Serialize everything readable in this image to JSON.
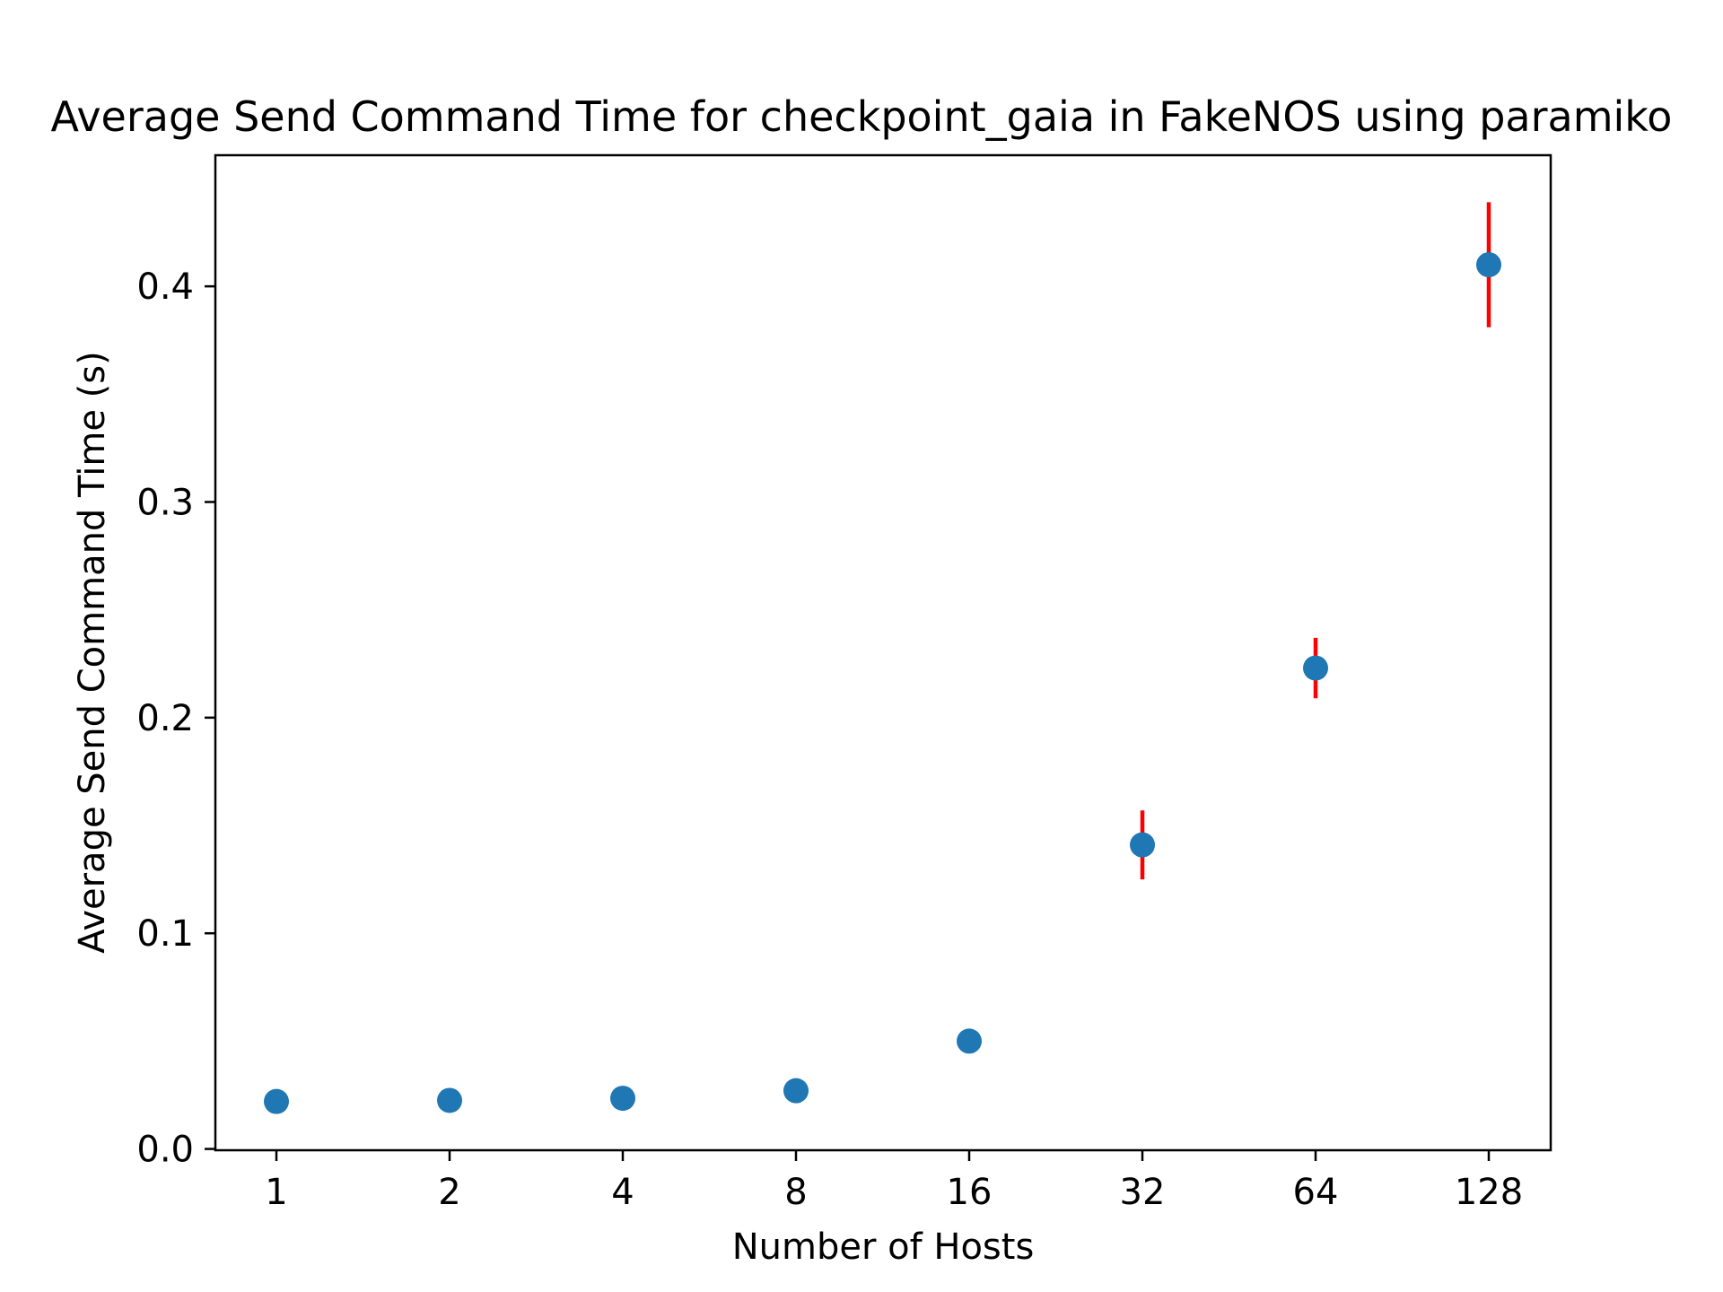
{
  "chart_data": {
    "type": "scatter",
    "title": "Average Send Command Time for checkpoint_gaia in FakeNOS using paramiko",
    "xlabel": "Number of Hosts",
    "ylabel": "Average Send Command Time (s)",
    "x_scale": "log2",
    "x": [
      1,
      2,
      4,
      8,
      16,
      32,
      64,
      128
    ],
    "x_tick_labels": [
      "1",
      "2",
      "4",
      "8",
      "16",
      "32",
      "64",
      "128"
    ],
    "y": [
      0.022,
      0.0225,
      0.0235,
      0.027,
      0.05,
      0.141,
      0.223,
      0.41
    ],
    "yerr": [
      0.001,
      0.001,
      0.001,
      0.0015,
      0.005,
      0.016,
      0.014,
      0.029
    ],
    "ylim": [
      -0.0006,
      0.4608
    ],
    "y_ticks": [
      0.0,
      0.1,
      0.2,
      0.3,
      0.4
    ],
    "y_tick_labels": [
      "0.0",
      "0.1",
      "0.2",
      "0.3",
      "0.4"
    ],
    "grid": false,
    "colors": {
      "marker": "#1f77b4",
      "errorbar": "#ff0000"
    }
  }
}
